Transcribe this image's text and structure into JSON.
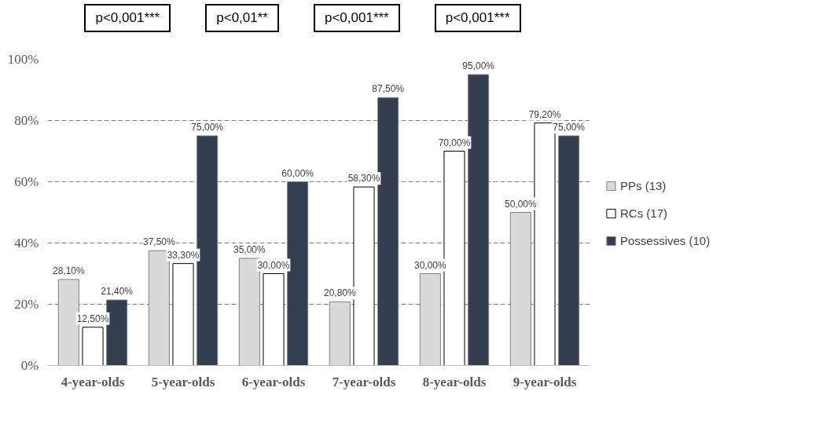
{
  "chart_data": {
    "type": "bar",
    "categories": [
      "4-year-olds",
      "5-year-olds",
      "6-year-olds",
      "7-year-olds",
      "8-year-olds",
      "9-year-olds"
    ],
    "series": [
      {
        "name": "PPs (13)",
        "color": "#d9d9d9",
        "values": [
          28.1,
          37.5,
          35.0,
          20.8,
          30.0,
          50.0
        ],
        "value_labels": [
          "28,10%",
          "37,50%",
          "35,00%",
          "20,80%",
          "30,00%",
          "50,00%"
        ]
      },
      {
        "name": "RCs (17)",
        "color": "#ffffff",
        "values": [
          12.5,
          33.3,
          30.0,
          58.3,
          70.0,
          79.2
        ],
        "value_labels": [
          "12,50%",
          "33,30%",
          "30,00%",
          "58,30%",
          "70,00%",
          "79,20%"
        ]
      },
      {
        "name": "Possessives (10)",
        "color": "#333f50",
        "values": [
          21.4,
          75.0,
          60.0,
          87.5,
          95.0,
          75.0
        ],
        "value_labels": [
          "21,40%",
          "75,00%",
          "60,00%",
          "87,50%",
          "95,00%",
          "75,00%"
        ]
      }
    ],
    "ylim": [
      0,
      100
    ],
    "yticks": [
      {
        "value": 0,
        "label": "0%"
      },
      {
        "value": 20,
        "label": "20%"
      },
      {
        "value": 40,
        "label": "40%"
      },
      {
        "value": 60,
        "label": "60%"
      },
      {
        "value": 80,
        "label": "80%"
      },
      {
        "value": 100,
        "label": "100%"
      }
    ],
    "grid": "y",
    "legend": "right",
    "annotations": [
      "p<0,001***",
      "p<0,01**",
      "p<0,001***",
      "p<0,001***"
    ]
  }
}
